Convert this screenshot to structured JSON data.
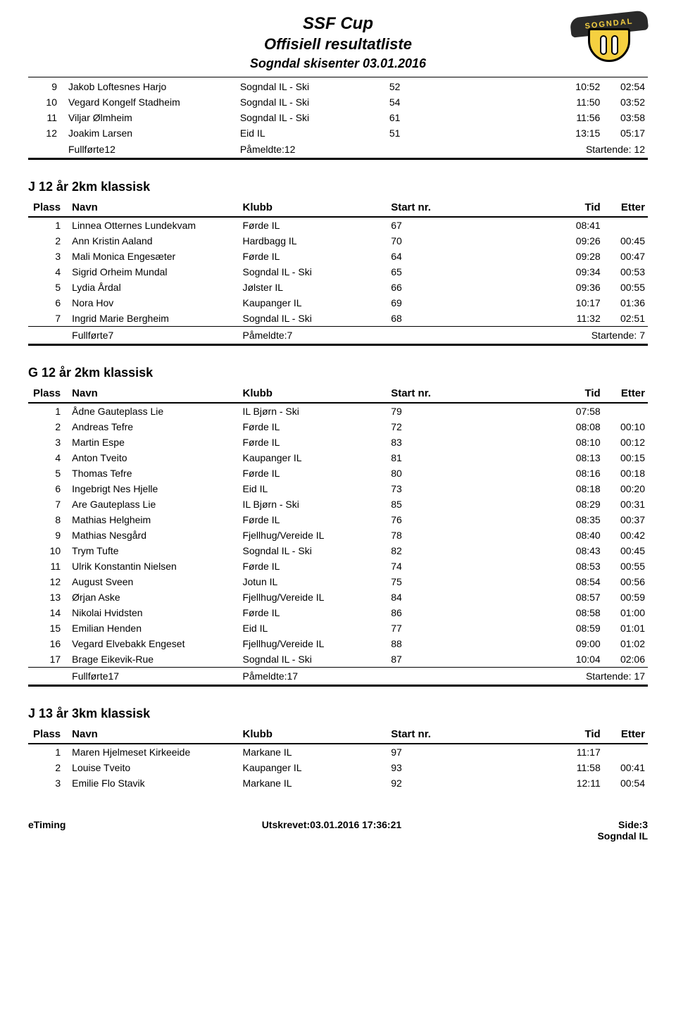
{
  "header": {
    "title": "SSF Cup",
    "subtitle": "Offisiell resultatliste",
    "venue": "Sogndal skisenter 03.01.2016",
    "logo_text": "SOGNDAL"
  },
  "columns": {
    "plass": "Plass",
    "navn": "Navn",
    "klubb": "Klubb",
    "startnr": "Start nr.",
    "tid": "Tid",
    "etter": "Etter"
  },
  "top_continuation": {
    "rows": [
      {
        "plass": "9",
        "navn": "Jakob Loftesnes Harjo",
        "klubb": "Sogndal IL - Ski",
        "start": "52",
        "tid": "10:52",
        "etter": "02:54"
      },
      {
        "plass": "10",
        "navn": "Vegard Kongelf Stadheim",
        "klubb": "Sogndal IL - Ski",
        "start": "54",
        "tid": "11:50",
        "etter": "03:52"
      },
      {
        "plass": "11",
        "navn": "Viljar Ølmheim",
        "klubb": "Sogndal IL - Ski",
        "start": "61",
        "tid": "11:56",
        "etter": "03:58"
      },
      {
        "plass": "12",
        "navn": "Joakim Larsen",
        "klubb": "Eid IL",
        "start": "51",
        "tid": "13:15",
        "etter": "05:17"
      }
    ],
    "summary": {
      "fullforte": "Fullførte12",
      "pameldte": "Påmeldte:12",
      "startende": "Startende: 12"
    }
  },
  "sections": [
    {
      "title": "J 12 år 2km klassisk",
      "rows": [
        {
          "plass": "1",
          "navn": "Linnea Otternes Lundekvam",
          "klubb": "Førde IL",
          "start": "67",
          "tid": "08:41",
          "etter": ""
        },
        {
          "plass": "2",
          "navn": "Ann Kristin Aaland",
          "klubb": "Hardbagg IL",
          "start": "70",
          "tid": "09:26",
          "etter": "00:45"
        },
        {
          "plass": "3",
          "navn": "Mali Monica Engesæter",
          "klubb": "Førde IL",
          "start": "64",
          "tid": "09:28",
          "etter": "00:47"
        },
        {
          "plass": "4",
          "navn": "Sigrid Orheim Mundal",
          "klubb": "Sogndal IL - Ski",
          "start": "65",
          "tid": "09:34",
          "etter": "00:53"
        },
        {
          "plass": "5",
          "navn": "Lydia Årdal",
          "klubb": "Jølster IL",
          "start": "66",
          "tid": "09:36",
          "etter": "00:55"
        },
        {
          "plass": "6",
          "navn": "Nora Hov",
          "klubb": "Kaupanger IL",
          "start": "69",
          "tid": "10:17",
          "etter": "01:36"
        },
        {
          "plass": "7",
          "navn": "Ingrid Marie Bergheim",
          "klubb": "Sogndal IL - Ski",
          "start": "68",
          "tid": "11:32",
          "etter": "02:51"
        }
      ],
      "summary": {
        "fullforte": "Fullførte7",
        "pameldte": "Påmeldte:7",
        "startende": "Startende: 7"
      }
    },
    {
      "title": "G 12 år 2km klassisk",
      "rows": [
        {
          "plass": "1",
          "navn": "Ådne Gauteplass Lie",
          "klubb": "IL Bjørn - Ski",
          "start": "79",
          "tid": "07:58",
          "etter": ""
        },
        {
          "plass": "2",
          "navn": "Andreas Tefre",
          "klubb": "Førde IL",
          "start": "72",
          "tid": "08:08",
          "etter": "00:10"
        },
        {
          "plass": "3",
          "navn": "Martin Espe",
          "klubb": "Førde IL",
          "start": "83",
          "tid": "08:10",
          "etter": "00:12"
        },
        {
          "plass": "4",
          "navn": "Anton Tveito",
          "klubb": "Kaupanger IL",
          "start": "81",
          "tid": "08:13",
          "etter": "00:15"
        },
        {
          "plass": "5",
          "navn": "Thomas Tefre",
          "klubb": "Førde IL",
          "start": "80",
          "tid": "08:16",
          "etter": "00:18"
        },
        {
          "plass": "6",
          "navn": "Ingebrigt Nes Hjelle",
          "klubb": "Eid IL",
          "start": "73",
          "tid": "08:18",
          "etter": "00:20"
        },
        {
          "plass": "7",
          "navn": "Are Gauteplass Lie",
          "klubb": "IL Bjørn - Ski",
          "start": "85",
          "tid": "08:29",
          "etter": "00:31"
        },
        {
          "plass": "8",
          "navn": "Mathias Helgheim",
          "klubb": "Førde IL",
          "start": "76",
          "tid": "08:35",
          "etter": "00:37"
        },
        {
          "plass": "9",
          "navn": "Mathias Nesgård",
          "klubb": "Fjellhug/Vereide IL",
          "start": "78",
          "tid": "08:40",
          "etter": "00:42"
        },
        {
          "plass": "10",
          "navn": "Trym Tufte",
          "klubb": "Sogndal IL - Ski",
          "start": "82",
          "tid": "08:43",
          "etter": "00:45"
        },
        {
          "plass": "11",
          "navn": "Ulrik Konstantin Nielsen",
          "klubb": "Førde IL",
          "start": "74",
          "tid": "08:53",
          "etter": "00:55"
        },
        {
          "plass": "12",
          "navn": "August Sveen",
          "klubb": "Jotun IL",
          "start": "75",
          "tid": "08:54",
          "etter": "00:56"
        },
        {
          "plass": "13",
          "navn": "Ørjan Aske",
          "klubb": "Fjellhug/Vereide IL",
          "start": "84",
          "tid": "08:57",
          "etter": "00:59"
        },
        {
          "plass": "14",
          "navn": "Nikolai Hvidsten",
          "klubb": "Førde IL",
          "start": "86",
          "tid": "08:58",
          "etter": "01:00"
        },
        {
          "plass": "15",
          "navn": "Emilian Henden",
          "klubb": "Eid IL",
          "start": "77",
          "tid": "08:59",
          "etter": "01:01"
        },
        {
          "plass": "16",
          "navn": "Vegard Elvebakk Engeset",
          "klubb": "Fjellhug/Vereide IL",
          "start": "88",
          "tid": "09:00",
          "etter": "01:02"
        },
        {
          "plass": "17",
          "navn": "Brage Eikevik-Rue",
          "klubb": "Sogndal IL - Ski",
          "start": "87",
          "tid": "10:04",
          "etter": "02:06"
        }
      ],
      "summary": {
        "fullforte": "Fullførte17",
        "pameldte": "Påmeldte:17",
        "startende": "Startende: 17"
      }
    },
    {
      "title": "J 13 år 3km klassisk",
      "rows": [
        {
          "plass": "1",
          "navn": "Maren Hjelmeset Kirkeeide",
          "klubb": "Markane IL",
          "start": "97",
          "tid": "11:17",
          "etter": ""
        },
        {
          "plass": "2",
          "navn": "Louise Tveito",
          "klubb": "Kaupanger IL",
          "start": "93",
          "tid": "11:58",
          "etter": "00:41"
        },
        {
          "plass": "3",
          "navn": "Emilie Flo Stavik",
          "klubb": "Markane IL",
          "start": "92",
          "tid": "12:11",
          "etter": "00:54"
        }
      ],
      "summary": null
    }
  ],
  "footer": {
    "left": "eTiming",
    "center": "Utskrevet:03.01.2016 17:36:21",
    "right_top": "Side:3",
    "right_bottom": "Sogndal IL"
  }
}
